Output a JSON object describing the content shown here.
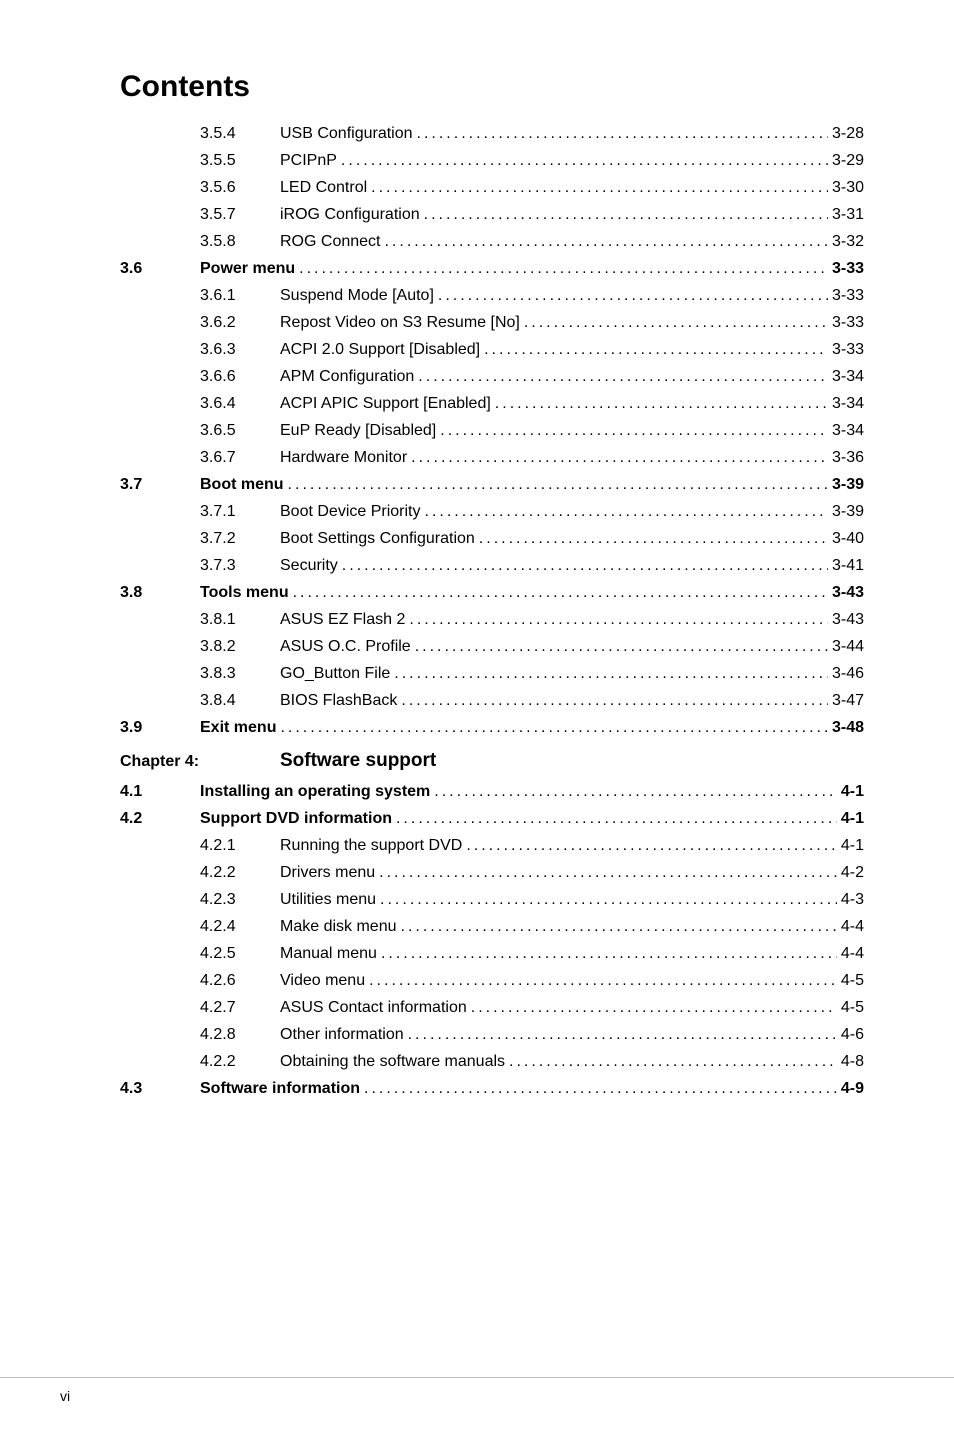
{
  "title": "Contents",
  "entries": [
    {
      "section": "",
      "sub": "3.5.4",
      "text": "USB Configuration",
      "page": "3-28",
      "bold": false
    },
    {
      "section": "",
      "sub": "3.5.5",
      "text": "PCIPnP",
      "page": "3-29",
      "bold": false
    },
    {
      "section": "",
      "sub": "3.5.6",
      "text": "LED Control",
      "page": "3-30",
      "bold": false
    },
    {
      "section": "",
      "sub": "3.5.7",
      "text": "iROG Configuration",
      "page": "3-31",
      "bold": false
    },
    {
      "section": "",
      "sub": "3.5.8",
      "text": "ROG Connect",
      "page": "3-32",
      "bold": false
    },
    {
      "section": "3.6",
      "sub": "",
      "text": "Power menu",
      "page": "3-33",
      "bold": true
    },
    {
      "section": "",
      "sub": "3.6.1",
      "text": "Suspend Mode [Auto]",
      "page": "3-33",
      "bold": false
    },
    {
      "section": "",
      "sub": "3.6.2",
      "text": "Repost Video on S3 Resume [No]",
      "page": "3-33",
      "bold": false
    },
    {
      "section": "",
      "sub": "3.6.3",
      "text": "ACPI 2.0 Support [Disabled]",
      "page": "3-33",
      "bold": false
    },
    {
      "section": "",
      "sub": "3.6.6",
      "text": "APM Configuration",
      "page": "3-34",
      "bold": false
    },
    {
      "section": "",
      "sub": "3.6.4",
      "text": "ACPI APIC Support [Enabled]",
      "page": "3-34",
      "bold": false
    },
    {
      "section": "",
      "sub": "3.6.5",
      "text": "EuP Ready [Disabled]",
      "page": "3-34",
      "bold": false
    },
    {
      "section": "",
      "sub": "3.6.7",
      "text": "Hardware Monitor",
      "page": "3-36",
      "bold": false
    },
    {
      "section": "3.7",
      "sub": "",
      "text": "Boot menu",
      "page": "3-39",
      "bold": true
    },
    {
      "section": "",
      "sub": "3.7.1",
      "text": "Boot Device Priority",
      "page": "3-39",
      "bold": false
    },
    {
      "section": "",
      "sub": "3.7.2",
      "text": "Boot Settings Configuration",
      "page": "3-40",
      "bold": false
    },
    {
      "section": "",
      "sub": "3.7.3",
      "text": "Security",
      "page": "3-41",
      "bold": false
    },
    {
      "section": "3.8",
      "sub": "",
      "text": "Tools menu",
      "page": "3-43",
      "bold": true
    },
    {
      "section": "",
      "sub": "3.8.1",
      "text": "ASUS EZ Flash 2",
      "page": "3-43",
      "bold": false
    },
    {
      "section": "",
      "sub": "3.8.2",
      "text": "ASUS O.C. Profile",
      "page": "3-44",
      "bold": false
    },
    {
      "section": "",
      "sub": "3.8.3",
      "text": "GO_Button File",
      "page": "3-46",
      "bold": false
    },
    {
      "section": "",
      "sub": "3.8.4",
      "text": "BIOS FlashBack",
      "page": "3-47",
      "bold": false
    },
    {
      "section": "3.9",
      "sub": "",
      "text": "Exit menu",
      "page": "3-48",
      "bold": true
    }
  ],
  "chapter": {
    "label": "Chapter 4:",
    "title": "Software support"
  },
  "entries2": [
    {
      "section": "4.1",
      "sub": "",
      "text": "Installing an operating system",
      "page": "4-1",
      "bold": true
    },
    {
      "section": "4.2",
      "sub": "",
      "text": "Support DVD information",
      "page": "4-1",
      "bold": true
    },
    {
      "section": "",
      "sub": "4.2.1",
      "text": "Running the support DVD",
      "page": "4-1",
      "bold": false
    },
    {
      "section": "",
      "sub": "4.2.2",
      "text": "Drivers menu",
      "page": "4-2",
      "bold": false
    },
    {
      "section": "",
      "sub": "4.2.3",
      "text": "Utilities menu",
      "page": "4-3",
      "bold": false
    },
    {
      "section": "",
      "sub": "4.2.4",
      "text": "Make disk menu",
      "page": "4-4",
      "bold": false
    },
    {
      "section": "",
      "sub": "4.2.5",
      "text": "Manual menu",
      "page": "4-4",
      "bold": false
    },
    {
      "section": "",
      "sub": "4.2.6",
      "text": "Video menu",
      "page": "4-5",
      "bold": false
    },
    {
      "section": "",
      "sub": "4.2.7",
      "text": "ASUS Contact information",
      "page": "4-5",
      "bold": false
    },
    {
      "section": "",
      "sub": "4.2.8",
      "text": "Other information",
      "page": "4-6",
      "bold": false
    },
    {
      "section": "",
      "sub": "4.2.2",
      "text": "Obtaining the software manuals",
      "page": "4-8",
      "bold": false
    },
    {
      "section": "4.3",
      "sub": "",
      "text": "Software information",
      "page": "4-9",
      "bold": true
    }
  ],
  "footer": {
    "page_number": "vi"
  }
}
